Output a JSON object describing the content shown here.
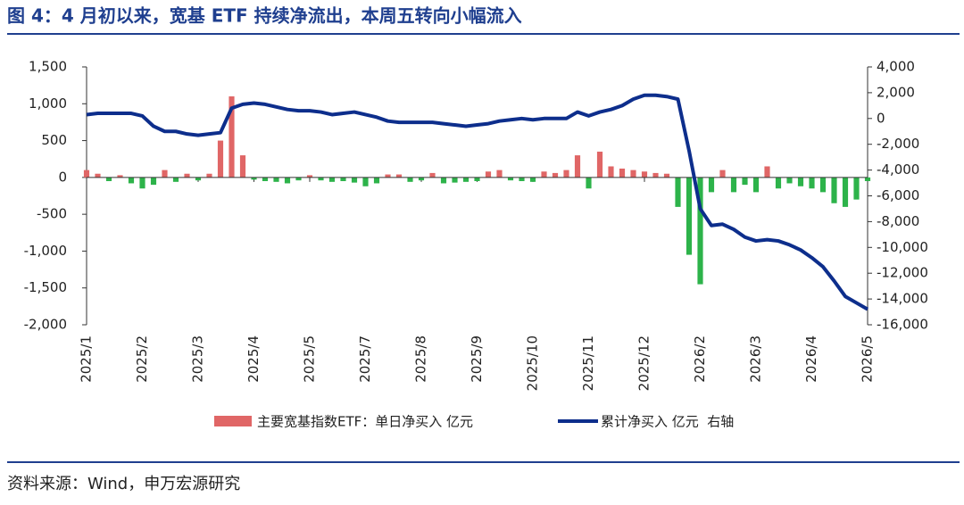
{
  "title": "图 4：4 月初以来，宽基 ETF 持续净流出，本周五转向小幅流入",
  "source": "资料来源：Wind，申万宏源研究",
  "chart_data": {
    "type": "bar-line",
    "x": [
      0,
      4,
      8,
      12,
      16,
      20,
      24,
      28,
      32,
      36,
      40,
      44,
      48,
      52,
      56,
      60,
      64,
      68,
      72,
      76,
      80,
      84,
      88,
      92,
      96,
      100,
      104,
      108,
      112,
      116,
      120,
      124,
      128,
      132,
      136,
      140,
      144,
      148,
      152,
      156,
      160,
      164,
      168,
      172,
      176,
      180,
      184,
      188,
      192,
      196,
      200,
      204,
      208,
      212,
      216,
      220,
      224,
      228,
      232,
      236,
      240,
      244,
      248,
      252,
      256,
      260,
      264,
      268,
      272,
      276,
      280
    ],
    "xlim": [
      0,
      280
    ],
    "xticks": [
      {
        "value": 0,
        "label": "2025/1"
      },
      {
        "value": 20,
        "label": "2025/2"
      },
      {
        "value": 40,
        "label": "2025/3"
      },
      {
        "value": 60,
        "label": "2025/4"
      },
      {
        "value": 80,
        "label": "2025/5"
      },
      {
        "value": 100,
        "label": "2025/7"
      },
      {
        "value": 120,
        "label": "2025/8"
      },
      {
        "value": 140,
        "label": "2025/9"
      },
      {
        "value": 160,
        "label": "2025/10"
      },
      {
        "value": 180,
        "label": "2025/11"
      },
      {
        "value": 200,
        "label": "2025/12"
      },
      {
        "value": 220,
        "label": "2026/2"
      },
      {
        "value": 240,
        "label": "2026/3"
      },
      {
        "value": 260,
        "label": "2026/4"
      },
      {
        "value": 280,
        "label": "2026/5"
      }
    ],
    "ylim": [
      -2000,
      1500
    ],
    "yticks": [
      {
        "value": 1500,
        "label": "1,500"
      },
      {
        "value": 1000,
        "label": "1,000"
      },
      500,
      0,
      -500,
      {
        "value": -1000,
        "label": "-1,000"
      },
      {
        "value": -1500,
        "label": "-1,500"
      },
      {
        "value": -2000,
        "label": "-2,000"
      }
    ],
    "y2lim": [
      -16000,
      4000
    ],
    "y2ticks": [
      {
        "value": 4000,
        "label": "4,000"
      },
      {
        "value": 2000,
        "label": "2,000"
      },
      0,
      {
        "value": -2000,
        "label": "-2,000"
      },
      {
        "value": -4000,
        "label": "-4,000"
      },
      {
        "value": -6000,
        "label": "-6,000"
      },
      {
        "value": -8000,
        "label": "-8,000"
      },
      {
        "value": -10000,
        "label": "-10,000"
      },
      {
        "value": -12000,
        "label": "-12,000"
      },
      {
        "value": -14000,
        "label": "-14,000"
      },
      {
        "value": -16000,
        "label": "-16,000"
      }
    ],
    "series": [
      {
        "name": "主要宽基指数ETF：单日净买入 亿元",
        "type": "bar",
        "color": "#e06666",
        "negative_color": "#2db34a",
        "values": [
          100,
          50,
          -50,
          30,
          -80,
          -150,
          -100,
          100,
          -60,
          50,
          -40,
          50,
          500,
          1100,
          300,
          -30,
          -50,
          -60,
          -80,
          -40,
          30,
          -40,
          -60,
          -50,
          -70,
          -120,
          -80,
          40,
          40,
          -60,
          -40,
          60,
          -80,
          -70,
          -60,
          -50,
          80,
          100,
          -40,
          -50,
          -60,
          80,
          60,
          100,
          300,
          -150,
          350,
          150,
          120,
          100,
          80,
          60,
          50,
          -400,
          -1050,
          -1450,
          -200,
          100,
          -200,
          -100,
          -200,
          150,
          -150,
          -80,
          -120,
          -150,
          -200,
          -350,
          -400,
          -300,
          -50
        ]
      },
      {
        "name": "累计净买入 亿元  右轴",
        "type": "line",
        "axis": "y2",
        "color": "#0d2e8c",
        "values": [
          300,
          400,
          400,
          400,
          400,
          200,
          -600,
          -1000,
          -1000,
          -1200,
          -1300,
          -1200,
          -1100,
          800,
          1100,
          1200,
          1100,
          900,
          700,
          600,
          600,
          500,
          300,
          400,
          500,
          300,
          100,
          -200,
          -300,
          -300,
          -300,
          -300,
          -400,
          -500,
          -600,
          -500,
          -400,
          -200,
          -100,
          0,
          -100,
          0,
          0,
          0,
          500,
          200,
          500,
          700,
          1000,
          1500,
          1800,
          1800,
          1700,
          1500,
          -2500,
          -7000,
          -8300,
          -8200,
          -8600,
          -9200,
          -9500,
          -9400,
          -9500,
          -9800,
          -10200,
          -10800,
          -11500,
          -12600,
          -13800,
          -14300,
          -14800
        ]
      }
    ]
  }
}
